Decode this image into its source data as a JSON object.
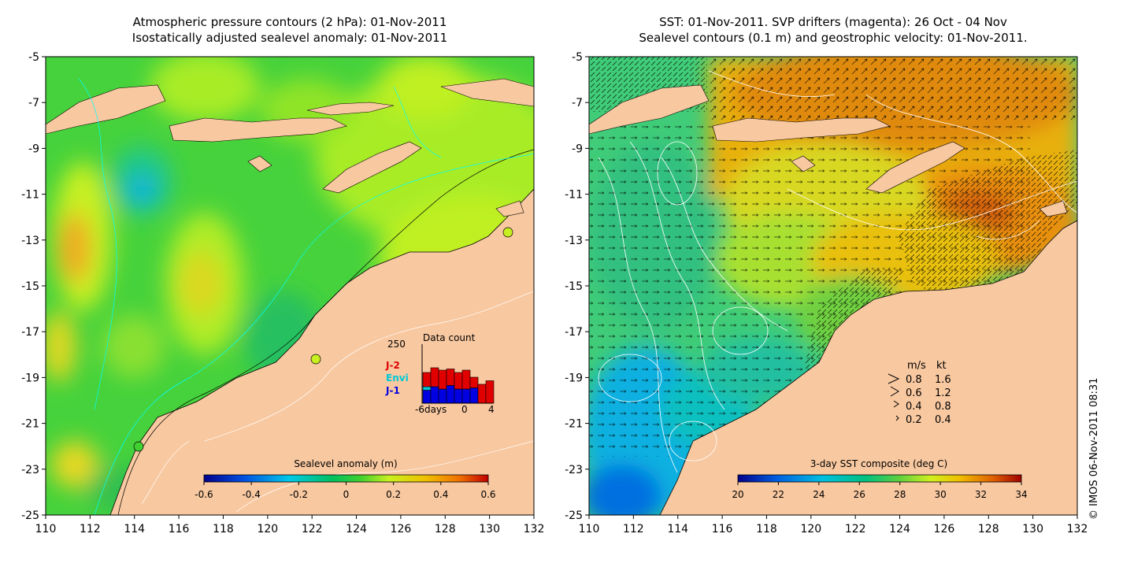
{
  "left_panel": {
    "title_line1": "Atmospheric pressure contours (2 hPa): 01-Nov-2011",
    "title_line2": "Isostatically adjusted sealevel anomaly: 01-Nov-2011",
    "x_ticks": [
      "110",
      "112",
      "114",
      "116",
      "118",
      "120",
      "122",
      "124",
      "126",
      "128",
      "130",
      "132"
    ],
    "y_ticks": [
      "-5",
      "-7",
      "-9",
      "-11",
      "-13",
      "-15",
      "-17",
      "-19",
      "-21",
      "-23",
      "-25"
    ],
    "colorbar": {
      "label": "Sealevel anomaly (m)",
      "ticks": [
        "-0.6",
        "-0.4",
        "-0.2",
        "0",
        "0.2",
        "0.4",
        "0.6"
      ]
    },
    "data_count": {
      "title": "Data count",
      "max_label": "250",
      "legend": [
        "J-2",
        "Envi",
        "J-1"
      ],
      "x_labels": [
        "-6days",
        "0",
        "4"
      ],
      "legend_colors": [
        "#e00000",
        "#00c8d8",
        "#0000e0"
      ],
      "bars": [
        {
          "j1": 55,
          "envi": 15,
          "j2": 60
        },
        {
          "j1": 70,
          "envi": 0,
          "j2": 80
        },
        {
          "j1": 60,
          "envi": 0,
          "j2": 80
        },
        {
          "j1": 75,
          "envi": 0,
          "j2": 70
        },
        {
          "j1": 60,
          "envi": 0,
          "j2": 70
        },
        {
          "j1": 60,
          "envi": 0,
          "j2": 80
        },
        {
          "j1": 65,
          "envi": 0,
          "j2": 45
        },
        {
          "j1": 0,
          "envi": 0,
          "j2": 80
        },
        {
          "j1": 0,
          "envi": 0,
          "j2": 95
        }
      ]
    }
  },
  "right_panel": {
    "title_line1": "SST: 01-Nov-2011. SVP drifters (magenta): 26 Oct - 04 Nov",
    "title_line2": "Sealevel contours (0.1 m) and geostrophic velocity: 01-Nov-2011.",
    "x_ticks": [
      "110",
      "112",
      "114",
      "116",
      "118",
      "120",
      "122",
      "124",
      "126",
      "128",
      "130",
      "132"
    ],
    "y_ticks": [
      "-5",
      "-7",
      "-9",
      "-11",
      "-13",
      "-15",
      "-17",
      "-19",
      "-21",
      "-23",
      "-25"
    ],
    "colorbar": {
      "label": "3-day SST composite (deg C)",
      "ticks": [
        "20",
        "22",
        "24",
        "26",
        "28",
        "30",
        "32",
        "34"
      ]
    },
    "velocity_legend": {
      "headers": [
        "m/s",
        "kt"
      ],
      "rows": [
        [
          "0.8",
          "1.6"
        ],
        [
          "0.6",
          "1.2"
        ],
        [
          "0.4",
          "0.8"
        ],
        [
          "0.2",
          "0.4"
        ]
      ]
    }
  },
  "copyright": "© IMOS 06-Nov-2011 08:31",
  "colors": {
    "land": "#f8c8a0",
    "ssh_ramp": [
      "#00008c",
      "#0050e0",
      "#00c8e8",
      "#00c060",
      "#40d030",
      "#c8f020",
      "#f0c000",
      "#f07000",
      "#c00000"
    ],
    "sst_ramp": [
      "#00008c",
      "#0060e0",
      "#00c0e0",
      "#00c080",
      "#60d040",
      "#d0f020",
      "#f0c000",
      "#e06000",
      "#a00000"
    ]
  }
}
